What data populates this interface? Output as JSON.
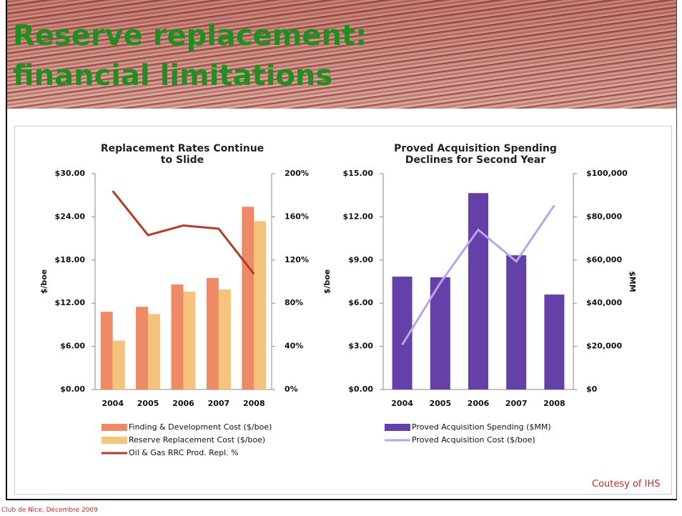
{
  "title": "Reserve replacement: financial limitations",
  "credit": "Coutesy of IHS",
  "footer": "Club de Nice, Décembre 2009",
  "chart_data": [
    {
      "type": "bar",
      "title": "Replacement Rates Continue to Slide",
      "y_label": "$/boe",
      "categories": [
        "2004",
        "2005",
        "2006",
        "2007",
        "2008"
      ],
      "ylim": [
        0,
        30
      ],
      "yticks": [
        {
          "value": 0,
          "label": "$0.00"
        },
        {
          "value": 6,
          "label": "$6.00"
        },
        {
          "value": 12,
          "label": "$12.00"
        },
        {
          "value": 18,
          "label": "$18.00"
        },
        {
          "value": 24,
          "label": "$24.00"
        },
        {
          "value": 30,
          "label": "$30.00"
        }
      ],
      "y2lim": [
        0,
        200
      ],
      "y2ticks": [
        {
          "value": 0,
          "label": "0%"
        },
        {
          "value": 40,
          "label": "40%"
        },
        {
          "value": 80,
          "label": "80%"
        },
        {
          "value": 120,
          "label": "120%"
        },
        {
          "value": 160,
          "label": "160%"
        },
        {
          "value": 200,
          "label": "200%"
        }
      ],
      "series": [
        {
          "name": "Finding & Development Cost ($/boe)",
          "type": "bar",
          "color": "#ef8a66",
          "values": [
            10.8,
            11.5,
            14.6,
            15.5,
            25.4
          ]
        },
        {
          "name": "Reserve Replacement Cost ($/boe)",
          "type": "bar",
          "color": "#f5c37c",
          "values": [
            6.8,
            10.5,
            13.6,
            13.9,
            23.4
          ]
        },
        {
          "name": "Oil & Gas RRC Prod. Repl. %",
          "type": "line",
          "axis": "y2",
          "color": "#b43a28",
          "values": [
            184,
            143,
            152,
            149,
            107
          ]
        }
      ]
    },
    {
      "type": "bar",
      "title": "Proved Acquisition Spending Declines for Second Year",
      "y_label": "$/boe",
      "y2_label": "$MM",
      "categories": [
        "2004",
        "2005",
        "2006",
        "2007",
        "2008"
      ],
      "ylim": [
        0,
        15
      ],
      "yticks": [
        {
          "value": 0,
          "label": "$0.00"
        },
        {
          "value": 3,
          "label": "$3.00"
        },
        {
          "value": 6,
          "label": "$6.00"
        },
        {
          "value": 9,
          "label": "$9.00"
        },
        {
          "value": 12,
          "label": "$12.00"
        },
        {
          "value": 15,
          "label": "$15.00"
        }
      ],
      "y2lim": [
        0,
        100000
      ],
      "y2ticks": [
        {
          "value": 0,
          "label": "$0"
        },
        {
          "value": 20000,
          "label": "$20,000"
        },
        {
          "value": 40000,
          "label": "$40,000"
        },
        {
          "value": 60000,
          "label": "$60,000"
        },
        {
          "value": 80000,
          "label": "$80,000"
        },
        {
          "value": 100000,
          "label": "$100,000"
        }
      ],
      "series": [
        {
          "name": "Proved Acquisition Spending ($MM)",
          "type": "bar",
          "axis": "y2",
          "color": "#6440a8",
          "values": [
            52300,
            52000,
            91000,
            62200,
            44000
          ]
        },
        {
          "name": "Proved Acquisition Cost ($/boe)",
          "type": "line",
          "color": "#b8a5e8",
          "values": [
            3.1,
            7.4,
            11.1,
            8.9,
            12.8
          ]
        }
      ]
    }
  ]
}
